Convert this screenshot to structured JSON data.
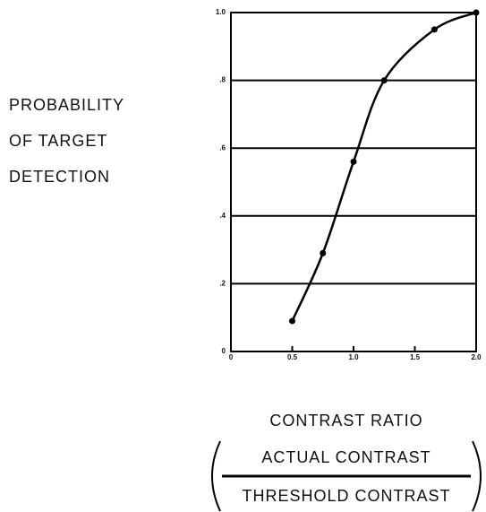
{
  "chart_data": {
    "type": "line",
    "y_label_lines": [
      "PROBABILITY",
      "OF TARGET",
      "DETECTION"
    ],
    "x_label": "CONTRAST RATIO",
    "x_label_numerator": "ACTUAL CONTRAST",
    "x_label_denominator": "THRESHOLD CONTRAST",
    "x": [
      0.5,
      0.75,
      1.0,
      1.25,
      1.66,
      2.0
    ],
    "series": [
      {
        "color": "#000000",
        "values": [
          0.09,
          0.29,
          0.56,
          0.8,
          0.95,
          1.0
        ]
      }
    ],
    "xlim": [
      0,
      2
    ],
    "ylim": [
      0,
      1
    ],
    "xticks": [
      0,
      {
        "value": 0.5,
        "label": "0.5"
      },
      {
        "value": 1,
        "label": "1.0"
      },
      {
        "value": 1.5,
        "label": "1.5"
      },
      {
        "value": 2,
        "label": "2.0"
      }
    ],
    "yticks": [
      0,
      {
        "value": 0.2,
        "label": ".2"
      },
      {
        "value": 0.4,
        "label": ".4"
      },
      {
        "value": 0.6,
        "label": ".6"
      },
      {
        "value": 0.8,
        "label": ".8"
      },
      {
        "value": 1,
        "label": "1.0"
      }
    ],
    "grid": true
  }
}
